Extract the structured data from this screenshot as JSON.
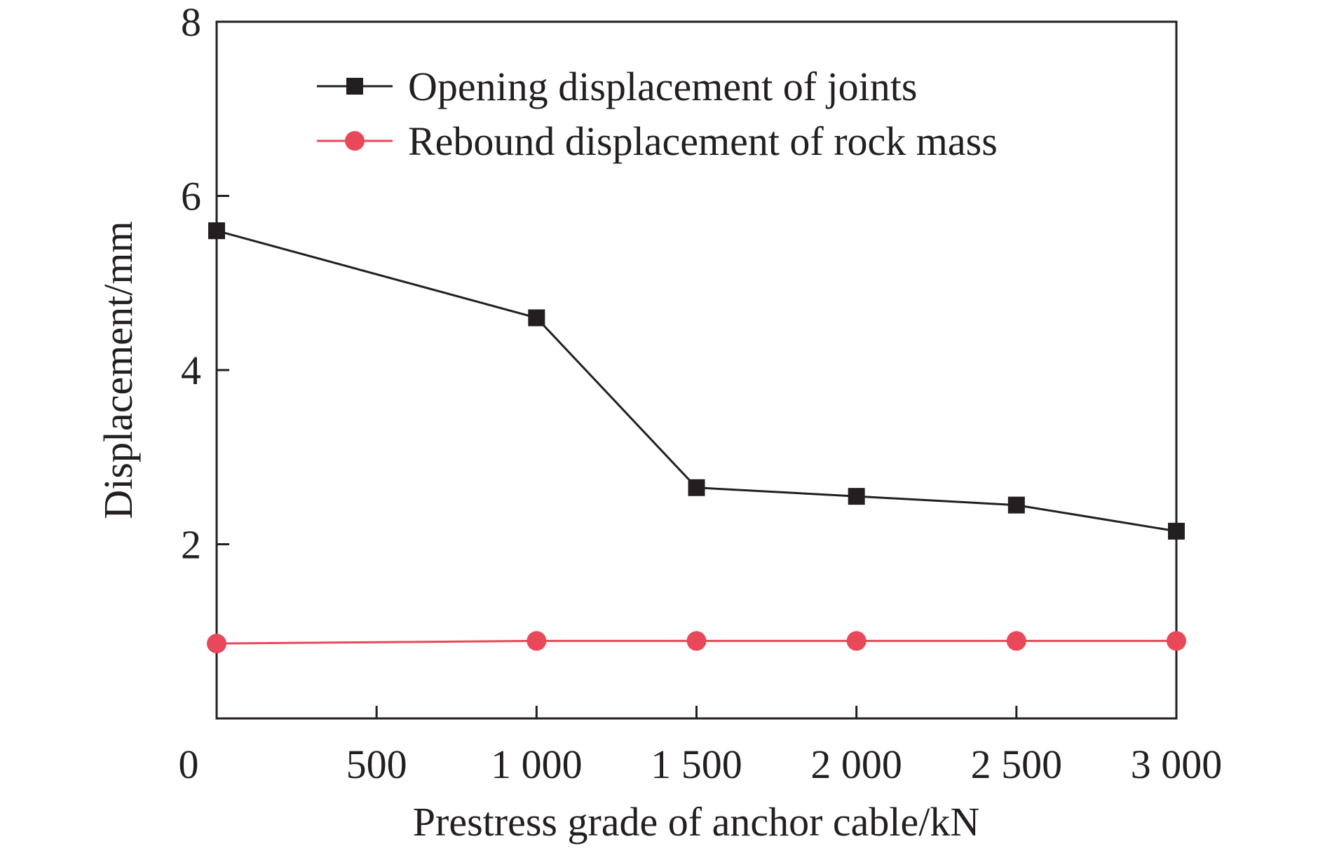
{
  "chart_data": {
    "type": "line",
    "title": "",
    "xlabel": "Prestress grade of anchor cable/kN",
    "ylabel": "Displacement/mm",
    "xlim": [
      0,
      3000
    ],
    "ylim": [
      0,
      8
    ],
    "x_ticks": [
      0,
      500,
      1000,
      1500,
      2000,
      2500,
      3000
    ],
    "x_tick_labels": [
      "0",
      "500",
      "1 000",
      "1 500",
      "2 000",
      "2 500",
      "3 000"
    ],
    "y_ticks": [
      2,
      4,
      6,
      8
    ],
    "y_tick_labels": [
      "2",
      "4",
      "6",
      "8"
    ],
    "grid": false,
    "legend_position": "top-left",
    "series": [
      {
        "name": "Opening displacement of joints",
        "marker": "square",
        "color": "#231f20",
        "x": [
          0,
          1000,
          1500,
          2000,
          2500,
          3000
        ],
        "values": [
          5.6,
          4.6,
          2.65,
          2.55,
          2.45,
          2.15
        ]
      },
      {
        "name": "Rebound displacement of rock mass",
        "marker": "circle",
        "color": "#e8485a",
        "x": [
          0,
          1000,
          1500,
          2000,
          2500,
          3000
        ],
        "values": [
          0.86,
          0.89,
          0.89,
          0.89,
          0.89,
          0.89
        ]
      }
    ]
  }
}
